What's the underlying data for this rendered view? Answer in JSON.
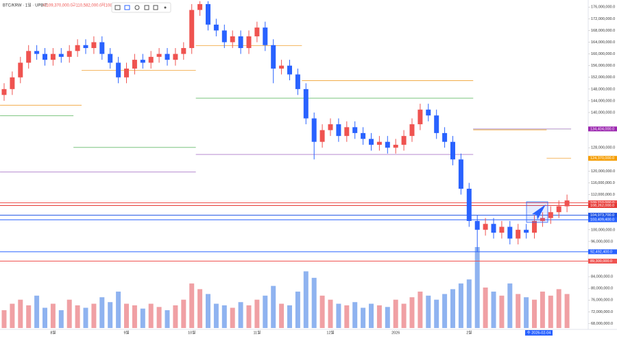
{
  "header": {
    "symbol": "BTC/KRW · 1일 · UPBIT",
    "open": "시109,370,000.0",
    "high": "고110,582,000.0",
    "low": "저108,426,000.0"
  },
  "chart_data": {
    "type": "candlestick",
    "categories": [
      null,
      null,
      null,
      null,
      null,
      null,
      "8월",
      null,
      null,
      null,
      null,
      null,
      null,
      null,
      null,
      "9월",
      null,
      null,
      null,
      null,
      null,
      null,
      null,
      "10월",
      null,
      null,
      null,
      null,
      null,
      null,
      null,
      "11월",
      null,
      null,
      null,
      null,
      null,
      null,
      null,
      null,
      "12월",
      null,
      null,
      null,
      null,
      null,
      null,
      null,
      "2026",
      null,
      null,
      null,
      null,
      null,
      null,
      null,
      null,
      "2월",
      null,
      null,
      null,
      null,
      null,
      null,
      null,
      null,
      null,
      null,
      null,
      null
    ],
    "open": [
      146000000,
      148000000,
      152000000,
      157000000,
      161000000,
      160000000,
      158000000,
      160000000,
      159000000,
      161000000,
      163000000,
      162000000,
      164000000,
      160000000,
      157000000,
      152000000,
      155000000,
      158000000,
      157000000,
      159000000,
      160000000,
      158000000,
      160000000,
      162000000,
      175000000,
      177000000,
      170000000,
      168000000,
      164000000,
      166000000,
      162000000,
      166000000,
      169000000,
      163000000,
      155000000,
      156000000,
      153000000,
      148000000,
      138000000,
      130000000,
      134000000,
      136000000,
      132000000,
      135000000,
      133000000,
      131000000,
      129000000,
      130000000,
      128000000,
      129000000,
      132000000,
      136000000,
      141000000,
      139000000,
      133000000,
      130000000,
      124000000,
      114000000,
      103000000,
      100000000,
      102000000,
      99000000,
      101000000,
      97000000,
      100000000,
      99000000,
      103000000,
      104000000,
      106000000,
      108000000
    ],
    "high": [
      150000000,
      154000000,
      159000000,
      163000000,
      163000000,
      162000000,
      162000000,
      162000000,
      163000000,
      165000000,
      165000000,
      166000000,
      166000000,
      162000000,
      159000000,
      157000000,
      160000000,
      160000000,
      161000000,
      162000000,
      162000000,
      162000000,
      164000000,
      177000000,
      178000000,
      178000000,
      172000000,
      170000000,
      168000000,
      168000000,
      168000000,
      171000000,
      171000000,
      165000000,
      158000000,
      158000000,
      155000000,
      150000000,
      140000000,
      136000000,
      138000000,
      138000000,
      137000000,
      137000000,
      135000000,
      133000000,
      132000000,
      132000000,
      131000000,
      134000000,
      138000000,
      143000000,
      143000000,
      141000000,
      135000000,
      132000000,
      126000000,
      116000000,
      105000000,
      104000000,
      104000000,
      103000000,
      103000000,
      102000000,
      102000000,
      105000000,
      106000000,
      108000000,
      110000000,
      112000000
    ],
    "low": [
      144000000,
      146000000,
      150000000,
      155000000,
      158000000,
      156000000,
      156000000,
      157000000,
      157000000,
      159000000,
      160000000,
      160000000,
      158000000,
      155000000,
      150000000,
      150000000,
      153000000,
      155000000,
      155000000,
      157000000,
      156000000,
      156000000,
      158000000,
      160000000,
      173000000,
      168000000,
      166000000,
      162000000,
      162000000,
      160000000,
      160000000,
      164000000,
      161000000,
      150000000,
      153000000,
      151000000,
      146000000,
      136000000,
      124000000,
      128000000,
      132000000,
      130000000,
      130000000,
      131000000,
      129000000,
      127000000,
      127000000,
      126000000,
      126000000,
      127000000,
      130000000,
      134000000,
      137000000,
      131000000,
      128000000,
      122000000,
      112000000,
      101000000,
      92500000,
      98000000,
      97000000,
      97000000,
      95000000,
      95000000,
      97000000,
      97000000,
      101000000,
      102000000,
      104000000,
      106000000
    ],
    "close": [
      148000000,
      152000000,
      157000000,
      161000000,
      160000000,
      158000000,
      160000000,
      159000000,
      161000000,
      163000000,
      162000000,
      164000000,
      160000000,
      157000000,
      152000000,
      155000000,
      158000000,
      157000000,
      159000000,
      160000000,
      158000000,
      160000000,
      162000000,
      175000000,
      177000000,
      170000000,
      168000000,
      164000000,
      166000000,
      162000000,
      166000000,
      169000000,
      163000000,
      155000000,
      156000000,
      153000000,
      148000000,
      138000000,
      130000000,
      134000000,
      136000000,
      132000000,
      135000000,
      133000000,
      131000000,
      129000000,
      130000000,
      128000000,
      129000000,
      132000000,
      136000000,
      141000000,
      139000000,
      133000000,
      130000000,
      124000000,
      114000000,
      103000000,
      100000000,
      102000000,
      99000000,
      101000000,
      97000000,
      100000000,
      99000000,
      103000000,
      104000000,
      106000000,
      108000000,
      110000000
    ],
    "volume": [
      22,
      30,
      35,
      28,
      40,
      25,
      30,
      22,
      35,
      28,
      25,
      30,
      38,
      32,
      45,
      30,
      28,
      24,
      30,
      26,
      22,
      28,
      35,
      55,
      48,
      42,
      30,
      28,
      25,
      32,
      28,
      35,
      40,
      52,
      30,
      28,
      45,
      70,
      62,
      40,
      35,
      30,
      28,
      32,
      25,
      30,
      28,
      26,
      35,
      30,
      38,
      45,
      40,
      35,
      42,
      48,
      55,
      60,
      100,
      50,
      45,
      40,
      55,
      42,
      38,
      35,
      45,
      40,
      48,
      42
    ],
    "volume_ylim": [
      0,
      100
    ],
    "up_color": "#ef5350",
    "down_color": "#2962ff",
    "up_volume_color": "#f0a0a4",
    "down_volume_color": "#8fb3f0",
    "ylim": [
      66000000,
      178400000
    ],
    "yticks": [
      {
        "value": 176000000,
        "label": "176,000,000.0"
      },
      {
        "value": 172000000,
        "label": "172,000,000.0"
      },
      {
        "value": 168000000,
        "label": "168,000,000.0"
      },
      {
        "value": 164000000,
        "label": "164,000,000.0"
      },
      {
        "value": 160000000,
        "label": "160,000,000.0"
      },
      {
        "value": 156000000,
        "label": "156,000,000.0"
      },
      {
        "value": 152000000,
        "label": "152,000,000.0"
      },
      {
        "value": 148000000,
        "label": "148,000,000.0"
      },
      {
        "value": 144000000,
        "label": "144,000,000.0"
      },
      {
        "value": 140000000,
        "label": "140,000,000.0"
      },
      {
        "value": 128000000,
        "label": "128,000,000.0"
      },
      {
        "value": 120000000,
        "label": "120,000,000.0"
      },
      {
        "value": 116000000,
        "label": "116,000,000.0"
      },
      {
        "value": 112000000,
        "label": "112,000,000.0"
      },
      {
        "value": 100000000,
        "label": "100,000,000.0"
      },
      {
        "value": 96000000,
        "label": "96,000,000.0"
      },
      {
        "value": 84000000,
        "label": "84,000,000.0"
      },
      {
        "value": 80000000,
        "label": "80,000,000.0"
      },
      {
        "value": 76000000,
        "label": "76,000,000.0"
      },
      {
        "value": 72000000,
        "label": "72,000,000.0"
      },
      {
        "value": 68000000,
        "label": "68,000,000.0"
      }
    ],
    "overlays": [
      {
        "color": "#f0a030",
        "steps": [
          {
            "start": 0,
            "end": 9,
            "value": 142500000
          },
          {
            "start": 10,
            "end": 23,
            "value": 154400000
          },
          {
            "start": 24,
            "end": 36,
            "value": 162800000
          },
          {
            "start": 37,
            "end": 57,
            "value": 150900000
          },
          {
            "start": 58,
            "end": 66,
            "value": 134100000
          },
          {
            "start": 67,
            "end": 69,
            "value": 124370000
          }
        ]
      },
      {
        "color": "#66bb6a",
        "steps": [
          {
            "start": 0,
            "end": 8,
            "value": 138900000
          },
          {
            "start": 9,
            "end": 23,
            "value": 128100000
          },
          {
            "start": 24,
            "end": 57,
            "value": 144900000
          },
          {
            "start": 58,
            "end": 69,
            "value": 134404000
          }
        ]
      },
      {
        "color": "#ab7ac8",
        "steps": [
          {
            "start": 0,
            "end": 23,
            "value": 119700000
          },
          {
            "start": 24,
            "end": 57,
            "value": 125700000
          },
          {
            "start": 58,
            "end": 69,
            "value": 134404000
          }
        ]
      }
    ],
    "hlines": [
      {
        "value": 109210000,
        "label": "109,210,000.0",
        "color": "#ef5350"
      },
      {
        "value": 108262000,
        "label": "108,262,000.0",
        "color": "#e53935"
      },
      {
        "value": 104973700,
        "label": "104,973,700.0",
        "color": "#1e53e5"
      },
      {
        "value": 103409400,
        "label": "103,409,400.0",
        "color": "#2962ff"
      },
      {
        "value": 92492400,
        "label": "92,492,400.0",
        "color": "#2962ff"
      },
      {
        "value": 89300000,
        "label": "89,300,000.0",
        "color": "#ef5350"
      }
    ],
    "badges": [
      {
        "value": 134404000,
        "label": "134,404,000.0",
        "color": "#9c27b0"
      },
      {
        "value": 124370000,
        "label": "124,370,000.0",
        "color": "#f59d00"
      }
    ],
    "date_label": "수 2026-02-04"
  }
}
